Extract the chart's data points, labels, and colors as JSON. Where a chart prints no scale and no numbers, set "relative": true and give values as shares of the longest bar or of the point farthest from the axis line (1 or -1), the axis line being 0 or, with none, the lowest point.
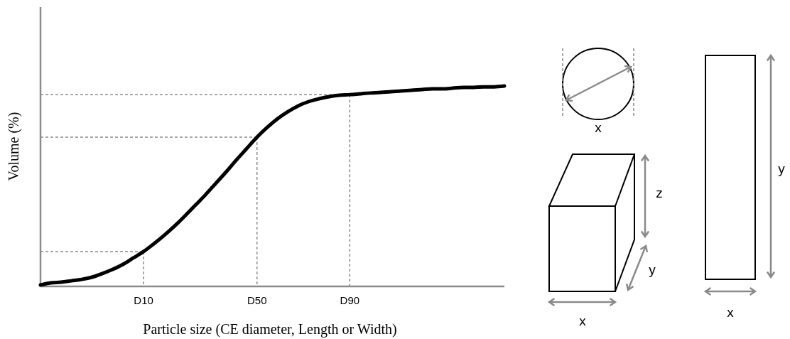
{
  "chart_data": {
    "type": "line",
    "relative": true,
    "xlabel": "Particle size (CE diameter, Length or Width)",
    "ylabel": "Volume (%)",
    "categories": [
      null,
      null,
      null,
      null,
      null,
      null,
      null,
      null,
      null,
      null,
      "D10",
      null,
      null,
      null,
      null,
      null,
      null,
      null,
      null,
      null,
      null,
      "D50",
      null,
      null,
      null,
      null,
      null,
      null,
      null,
      null,
      "D90",
      null,
      null,
      null,
      null,
      null,
      null,
      null,
      null,
      null,
      null,
      null,
      null,
      null,
      null,
      null
    ],
    "series": [
      {
        "color": "#000000",
        "values": [
          0.007,
          0.018,
          0.021,
          0.028,
          0.035,
          0.046,
          0.064,
          0.085,
          0.11,
          0.142,
          0.174,
          0.213,
          0.255,
          0.301,
          0.351,
          0.404,
          0.457,
          0.514,
          0.571,
          0.631,
          0.688,
          0.745,
          0.794,
          0.837,
          0.872,
          0.901,
          0.922,
          0.936,
          0.947,
          0.954,
          0.957,
          0.961,
          0.965,
          0.968,
          0.972,
          0.975,
          0.979,
          0.982,
          0.986,
          0.986,
          0.989,
          0.993,
          0.993,
          0.996,
          0.996,
          1.0
        ]
      }
    ],
    "ref_lines": [
      {
        "axis": "y",
        "value": 0.174,
        "color": "#8a8a8a",
        "line_style": "dashed"
      },
      {
        "axis": "y",
        "value": 0.745,
        "color": "#8a8a8a",
        "line_style": "dashed"
      },
      {
        "axis": "y",
        "value": 0.957,
        "color": "#8a8a8a",
        "line_style": "dashed"
      },
      {
        "axis": "x",
        "value": "D10",
        "color": "#8a8a8a",
        "line_style": "dashed"
      },
      {
        "axis": "x",
        "value": "D50",
        "color": "#8a8a8a",
        "line_style": "dashed"
      },
      {
        "axis": "x",
        "value": "D90",
        "color": "#8a8a8a",
        "line_style": "dashed"
      }
    ],
    "marker": "none",
    "line_style": "solid",
    "grid": false,
    "annotations": [
      "x",
      "z",
      "y",
      "x",
      "y",
      "x"
    ]
  }
}
